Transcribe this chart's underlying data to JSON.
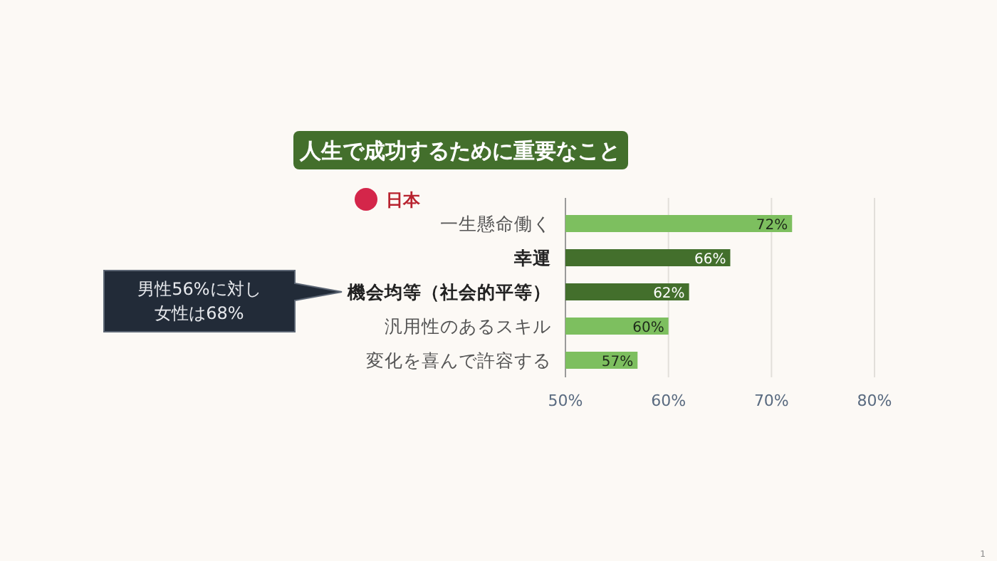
{
  "chart_data": {
    "type": "bar",
    "orientation": "horizontal",
    "title": "人生で成功するために重要なこと",
    "categories": [
      "一生懸命働く",
      "幸運",
      "機会均等（社会的平等）",
      "汎用性のあるスキル",
      "変化を喜んで許容する"
    ],
    "values": [
      72,
      66,
      62,
      60,
      57
    ],
    "colors": [
      "#7dbf5f",
      "#436f2c",
      "#436f2c",
      "#7dbf5f",
      "#7dbf5f"
    ],
    "value_labels": [
      "72%",
      "66%",
      "62%",
      "60%",
      "57%"
    ],
    "xlim": [
      50,
      80
    ],
    "xticks": [
      {
        "value": 50,
        "label": "50%"
      },
      {
        "value": 60,
        "label": "60%"
      },
      {
        "value": 70,
        "label": "70%"
      },
      {
        "value": 80,
        "label": "80%"
      }
    ],
    "grid": "x",
    "annotations": [
      "日本",
      "男性56%に対し",
      "女性は68%",
      "1"
    ]
  }
}
